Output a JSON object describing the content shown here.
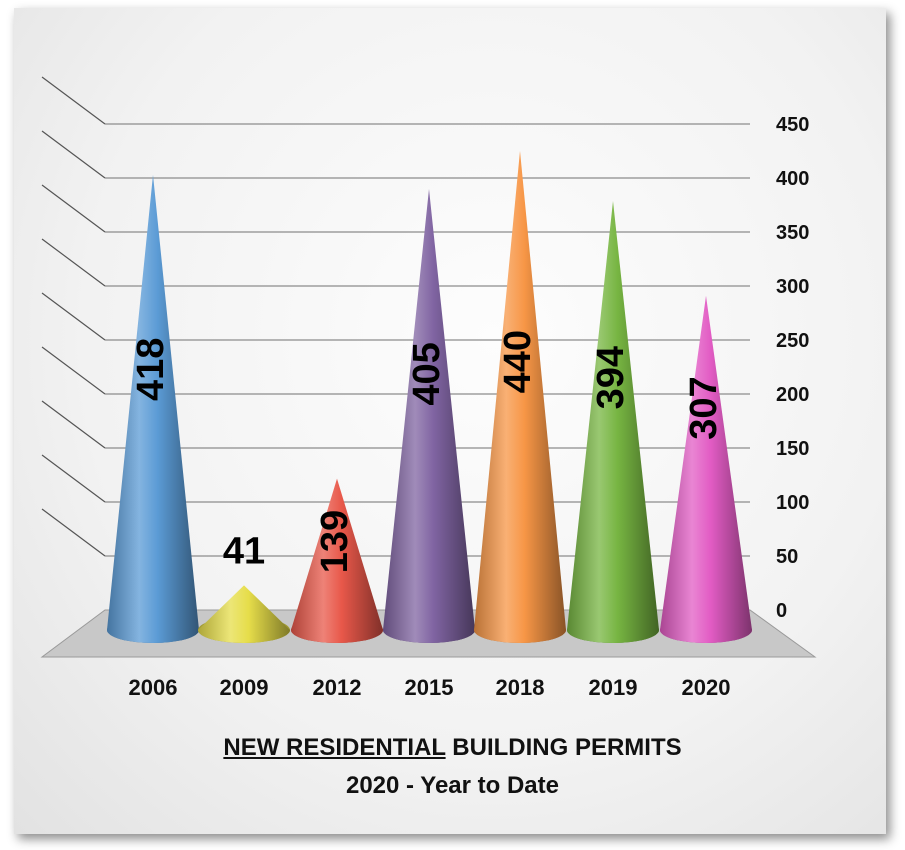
{
  "chart_data": {
    "type": "bar",
    "shape": "cone",
    "categories": [
      "2006",
      "2009",
      "2012",
      "2015",
      "2018",
      "2019",
      "2020"
    ],
    "values": [
      418,
      41,
      139,
      405,
      440,
      394,
      307
    ],
    "data_labels": [
      "418",
      "41",
      "139",
      "405",
      "440",
      "394",
      "307"
    ],
    "colors": [
      "#5b9bd5",
      "#e6dd4a",
      "#e8584a",
      "#8064a2",
      "#f79646",
      "#77b542",
      "#e25cc4"
    ],
    "ylim": [
      0,
      450
    ],
    "yticks": [
      "0",
      "50",
      "100",
      "150",
      "200",
      "250",
      "300",
      "350",
      "400",
      "450"
    ],
    "grid": true,
    "title_underlined": "NEW RESIDENTIAL",
    "title_rest": " BUILDING PERMITS",
    "subtitle": "2020 - Year to Date"
  }
}
